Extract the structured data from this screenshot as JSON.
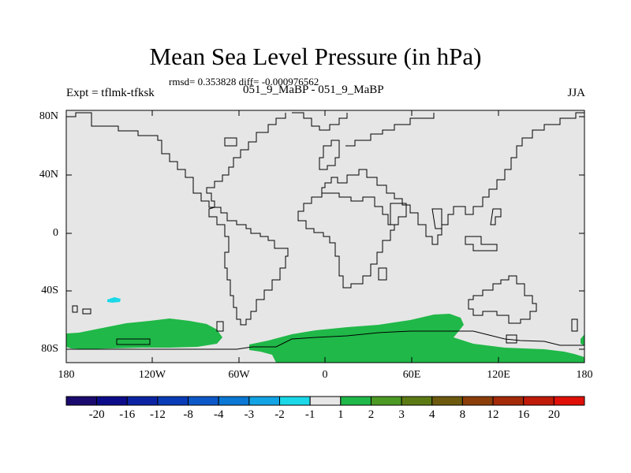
{
  "title": "Mean Sea Level Pressure (in hPa)",
  "stats": "rmsd= 0.353828 diff= -0.000976562",
  "expt": "Expt = tflmk-tfksk",
  "subtitle": "051_9_MaBP - 051_9_MaBP",
  "season": "JJA",
  "colors": {
    "background_field": "#e6e6e6",
    "land_outline": "#000000",
    "positive_anomaly": "#20b848",
    "negative_anomaly": "#1ad8e8"
  },
  "axes": {
    "y_labels": [
      "80N",
      "40N",
      "0",
      "40S",
      "80S"
    ],
    "x_labels": [
      "180",
      "120W",
      "60W",
      "0",
      "60E",
      "120E",
      "180"
    ]
  },
  "colorbar": {
    "labels": [
      "-20",
      "-16",
      "-12",
      "-8",
      "-4",
      "-3",
      "-2",
      "-1",
      "1",
      "2",
      "3",
      "4",
      "8",
      "12",
      "16",
      "20"
    ],
    "colors": [
      "#1a0a6e",
      "#0c0c8a",
      "#0c24a4",
      "#0a3cb8",
      "#0c58c8",
      "#0a78d4",
      "#12a4e4",
      "#1ad8e8",
      "#e6e6e6",
      "#20b848",
      "#4c9a24",
      "#5c7a14",
      "#6e5a0e",
      "#8c3e0a",
      "#a42a08",
      "#c01a08",
      "#e01008"
    ]
  }
}
